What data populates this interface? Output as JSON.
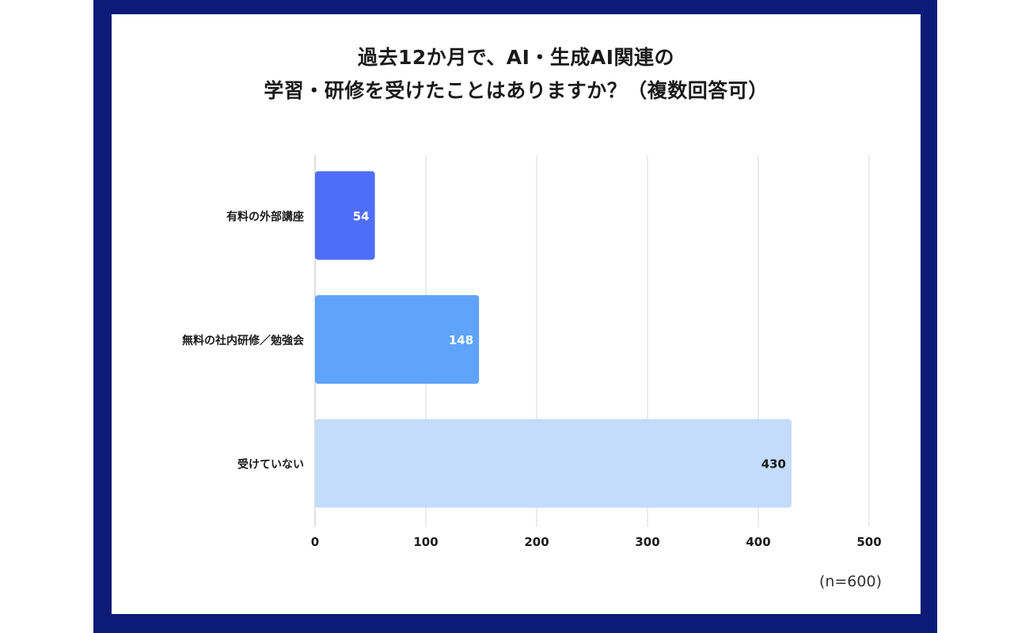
{
  "chart_data": {
    "type": "bar",
    "orientation": "horizontal",
    "title_lines": [
      "過去12か月で、AI・生成AI関連の",
      "学習・研修を受けたことはありますか？（複数回答可）"
    ],
    "categories": [
      "有料の外部講座",
      "無料の社内研修／勉強会",
      "受けていない"
    ],
    "values": [
      54,
      148,
      430
    ],
    "value_labels": [
      "54",
      "148",
      "430"
    ],
    "bar_colors": [
      "#4f6ef7",
      "#5fa3fb",
      "#c3dcfc"
    ],
    "label_colors": [
      "#ffffff",
      "#ffffff",
      "#1a1a1a"
    ],
    "xlim": [
      0,
      500
    ],
    "xticks": [
      0,
      100,
      200,
      300,
      400,
      500
    ],
    "grid": true,
    "note": "(n=600)"
  },
  "colors": {
    "frame": "#0d1a78",
    "grid": "#d9d9d9",
    "text": "#1a1a1a"
  }
}
